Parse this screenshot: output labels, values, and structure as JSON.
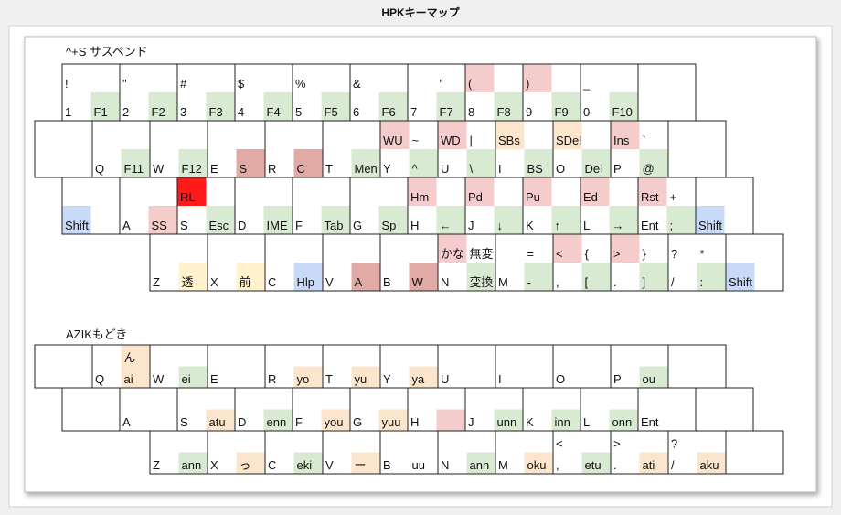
{
  "title": "HPKキーマップ",
  "sections": [
    {
      "label": "^+S サスペンド",
      "rows": [
        {
          "keys": [
            {
              "tl": {
                "text": "!"
              },
              "bl": {
                "text": "1"
              },
              "br": {
                "text": "F1",
                "color": "#d9ead3"
              }
            },
            {
              "tl": {
                "text": "\""
              },
              "bl": {
                "text": "2"
              },
              "br": {
                "text": "F2",
                "color": "#d9ead3"
              }
            },
            {
              "tl": {
                "text": "#"
              },
              "bl": {
                "text": "3"
              },
              "br": {
                "text": "F3",
                "color": "#d9ead3"
              }
            },
            {
              "tl": {
                "text": "$"
              },
              "bl": {
                "text": "4"
              },
              "br": {
                "text": "F4",
                "color": "#d9ead3"
              }
            },
            {
              "tl": {
                "text": "%"
              },
              "bl": {
                "text": "5"
              },
              "br": {
                "text": "F5",
                "color": "#d9ead3"
              }
            },
            {
              "tl": {
                "text": "&"
              },
              "bl": {
                "text": "6"
              },
              "br": {
                "text": "F6",
                "color": "#d9ead3"
              }
            },
            {
              "tr": {
                "text": "'"
              },
              "bl": {
                "text": "7"
              },
              "br": {
                "text": "F7",
                "color": "#d9ead3"
              }
            },
            {
              "tl": {
                "text": "(",
                "color": "#f4cccc"
              },
              "bl": {
                "text": "8"
              },
              "br": {
                "text": "F8",
                "color": "#d9ead3"
              }
            },
            {
              "tl": {
                "text": ")",
                "color": "#f4cccc"
              },
              "bl": {
                "text": "9"
              },
              "br": {
                "text": "F9",
                "color": "#d9ead3"
              }
            },
            {
              "tl": {
                "text": "_"
              },
              "bl": {
                "text": "0"
              },
              "br": {
                "text": "F10",
                "color": "#d9ead3"
              }
            },
            {}
          ]
        },
        {
          "keys": [
            {},
            {
              "bl": {
                "text": "Q"
              },
              "br": {
                "text": "F11",
                "color": "#d9ead3"
              }
            },
            {
              "bl": {
                "text": "W"
              },
              "br": {
                "text": "F12",
                "color": "#d9ead3"
              }
            },
            {
              "bl": {
                "text": "E"
              },
              "br": {
                "text": "S",
                "color": "#e2aaa4"
              }
            },
            {
              "bl": {
                "text": "R"
              },
              "br": {
                "text": "C",
                "color": "#e2aaa4"
              }
            },
            {
              "bl": {
                "text": "T"
              },
              "br": {
                "text": "Men",
                "color": "#d9ead3"
              }
            },
            {
              "tl": {
                "text": "WU",
                "color": "#f4cccc"
              },
              "tr": {
                "text": "~"
              },
              "bl": {
                "text": "Y"
              },
              "br": {
                "text": "^",
                "color": "#d9ead3"
              }
            },
            {
              "tl": {
                "text": "WD",
                "color": "#f4cccc"
              },
              "tr": {
                "text": "|"
              },
              "bl": {
                "text": "U"
              },
              "br": {
                "text": "\\",
                "color": "#d9ead3"
              }
            },
            {
              "tl": {
                "text": "SBs",
                "color": "#fce5cd"
              },
              "bl": {
                "text": "I"
              },
              "br": {
                "text": "BS",
                "color": "#d9ead3"
              }
            },
            {
              "tl": {
                "text": "SDel",
                "color": "#fce5cd"
              },
              "bl": {
                "text": "O"
              },
              "br": {
                "text": "Del",
                "color": "#d9ead3"
              }
            },
            {
              "tl": {
                "text": "Ins",
                "color": "#f4cccc"
              },
              "tr": {
                "text": "`"
              },
              "bl": {
                "text": "P"
              },
              "br": {
                "text": "@",
                "color": "#d9ead3"
              }
            },
            {}
          ]
        },
        {
          "keys": [
            {
              "bl": {
                "text": "Shift",
                "color": "#c9daf8"
              }
            },
            {
              "bl": {
                "text": "A"
              },
              "br": {
                "text": "SS",
                "color": "#f4cccc"
              }
            },
            {
              "tl": {
                "text": "RL",
                "color": "#ff1a1a"
              },
              "bl": {
                "text": "S"
              },
              "br": {
                "text": "Esc",
                "color": "#d9ead3"
              }
            },
            {
              "bl": {
                "text": "D"
              },
              "br": {
                "text": "IME",
                "color": "#d9ead3"
              }
            },
            {
              "bl": {
                "text": "F"
              },
              "br": {
                "text": "Tab",
                "color": "#d9ead3"
              }
            },
            {
              "bl": {
                "text": "G"
              },
              "br": {
                "text": "Sp",
                "color": "#d9ead3"
              }
            },
            {
              "tl": {
                "text": "Hm",
                "color": "#f4cccc"
              },
              "bl": {
                "text": "H"
              },
              "br": {
                "text": "←",
                "color": "#d9ead3"
              }
            },
            {
              "tl": {
                "text": "Pd",
                "color": "#f4cccc"
              },
              "bl": {
                "text": "J"
              },
              "br": {
                "text": "↓",
                "color": "#d9ead3"
              }
            },
            {
              "tl": {
                "text": "Pu",
                "color": "#f4cccc"
              },
              "bl": {
                "text": "K"
              },
              "br": {
                "text": "↑",
                "color": "#d9ead3"
              }
            },
            {
              "tl": {
                "text": "Ed",
                "color": "#f4cccc"
              },
              "bl": {
                "text": "L"
              },
              "br": {
                "text": "→",
                "color": "#d9ead3"
              }
            },
            {
              "tl": {
                "text": "Rst",
                "color": "#f4cccc"
              },
              "tr": {
                "text": "+"
              },
              "bl": {
                "text": "Ent"
              },
              "br": {
                "text": ";",
                "color": "#d9ead3"
              }
            },
            {
              "bl": {
                "text": "Shift",
                "color": "#c9daf8"
              }
            }
          ]
        },
        {
          "keys": [
            {
              "bl": {
                "text": "Z"
              },
              "br": {
                "text": "透",
                "color": "#fff2cc"
              }
            },
            {
              "bl": {
                "text": "X"
              },
              "br": {
                "text": "前",
                "color": "#fff2cc"
              }
            },
            {
              "bl": {
                "text": "C"
              },
              "br": {
                "text": "Hlp",
                "color": "#c9daf8"
              }
            },
            {
              "bl": {
                "text": "V"
              },
              "br": {
                "text": "A",
                "color": "#e2aaa4"
              }
            },
            {
              "bl": {
                "text": "B"
              },
              "br": {
                "text": "W",
                "color": "#e2aaa4"
              }
            },
            {
              "tl": {
                "text": "かな",
                "color": "#f4cccc"
              },
              "tr": {
                "text": "無変"
              },
              "bl": {
                "text": "N"
              },
              "br": {
                "text": "変換",
                "color": "#d9ead3"
              }
            },
            {
              "tr": {
                "text": "="
              },
              "bl": {
                "text": "M"
              },
              "br": {
                "text": "-",
                "color": "#d9ead3"
              }
            },
            {
              "tl": {
                "text": "<",
                "color": "#f4cccc"
              },
              "tr": {
                "text": "{"
              },
              "bl": {
                "text": ","
              },
              "br": {
                "text": "[",
                "color": "#d9ead3"
              }
            },
            {
              "tl": {
                "text": ">",
                "color": "#f4cccc"
              },
              "tr": {
                "text": "}"
              },
              "bl": {
                "text": "."
              },
              "br": {
                "text": "]",
                "color": "#d9ead3"
              }
            },
            {
              "tl": {
                "text": "?"
              },
              "tr": {
                "text": "*"
              },
              "bl": {
                "text": "/"
              },
              "br": {
                "text": ":",
                "color": "#d9ead3"
              }
            },
            {
              "bl": {
                "text": "Shift",
                "color": "#c9daf8"
              }
            }
          ]
        }
      ]
    },
    {
      "label": "AZIKもどき",
      "rows": [
        {
          "keys": [
            {},
            {
              "tr": {
                "text": "ん",
                "color": "#fce5cd"
              },
              "bl": {
                "text": "Q"
              },
              "br": {
                "text": "ai",
                "color": "#fce5cd"
              }
            },
            {
              "bl": {
                "text": "W"
              },
              "br": {
                "text": "ei",
                "color": "#d9ead3"
              }
            },
            {
              "bl": {
                "text": "E"
              }
            },
            {
              "bl": {
                "text": "R"
              },
              "br": {
                "text": "yo",
                "color": "#fce5cd"
              }
            },
            {
              "bl": {
                "text": "T"
              },
              "br": {
                "text": "yu",
                "color": "#fce5cd"
              }
            },
            {
              "bl": {
                "text": "Y"
              },
              "br": {
                "text": "ya",
                "color": "#fce5cd"
              }
            },
            {
              "bl": {
                "text": "U"
              }
            },
            {
              "bl": {
                "text": "I"
              }
            },
            {
              "bl": {
                "text": "O"
              }
            },
            {
              "bl": {
                "text": "P"
              },
              "br": {
                "text": "ou",
                "color": "#d9ead3"
              }
            },
            {}
          ]
        },
        {
          "keys": [
            {},
            {
              "bl": {
                "text": "A"
              }
            },
            {
              "bl": {
                "text": "S"
              },
              "br": {
                "text": "atu",
                "color": "#fce5cd"
              }
            },
            {
              "bl": {
                "text": "D"
              },
              "br": {
                "text": "enn",
                "color": "#d9ead3"
              }
            },
            {
              "bl": {
                "text": "F"
              },
              "br": {
                "text": "you",
                "color": "#fce5cd"
              }
            },
            {
              "bl": {
                "text": "G"
              },
              "br": {
                "text": "yuu",
                "color": "#fce5cd"
              }
            },
            {
              "bl": {
                "text": "H"
              },
              "br": {
                "color": "#f4cccc"
              }
            },
            {
              "bl": {
                "text": "J"
              },
              "br": {
                "text": "unn",
                "color": "#d9ead3"
              }
            },
            {
              "bl": {
                "text": "K"
              },
              "br": {
                "text": "inn",
                "color": "#d9ead3"
              }
            },
            {
              "bl": {
                "text": "L"
              },
              "br": {
                "text": "onn",
                "color": "#d9ead3"
              }
            },
            {
              "bl": {
                "text": "Ent"
              }
            },
            {}
          ]
        },
        {
          "keys": [
            {
              "bl": {
                "text": "Z"
              },
              "br": {
                "text": "ann",
                "color": "#d9ead3"
              }
            },
            {
              "bl": {
                "text": "X"
              },
              "br": {
                "text": "っ",
                "color": "#fce5cd"
              }
            },
            {
              "bl": {
                "text": "C"
              },
              "br": {
                "text": "eki",
                "color": "#d9ead3"
              }
            },
            {
              "bl": {
                "text": "V"
              },
              "br": {
                "text": "ー",
                "color": "#fce5cd"
              }
            },
            {
              "bl": {
                "text": "B"
              },
              "br": {
                "text": "uu"
              }
            },
            {
              "bl": {
                "text": "N"
              },
              "br": {
                "text": "ann",
                "color": "#d9ead3"
              }
            },
            {
              "bl": {
                "text": "M"
              },
              "br": {
                "text": "oku",
                "color": "#fce5cd"
              }
            },
            {
              "tl": {
                "text": "<"
              },
              "bl": {
                "text": ","
              },
              "br": {
                "text": "etu",
                "color": "#d9ead3"
              }
            },
            {
              "tl": {
                "text": ">"
              },
              "bl": {
                "text": "."
              },
              "br": {
                "text": "ati",
                "color": "#fce5cd"
              }
            },
            {
              "tl": {
                "text": "?"
              },
              "bl": {
                "text": "/"
              },
              "br": {
                "text": "aku",
                "color": "#fce5cd"
              }
            },
            {}
          ]
        }
      ]
    }
  ]
}
